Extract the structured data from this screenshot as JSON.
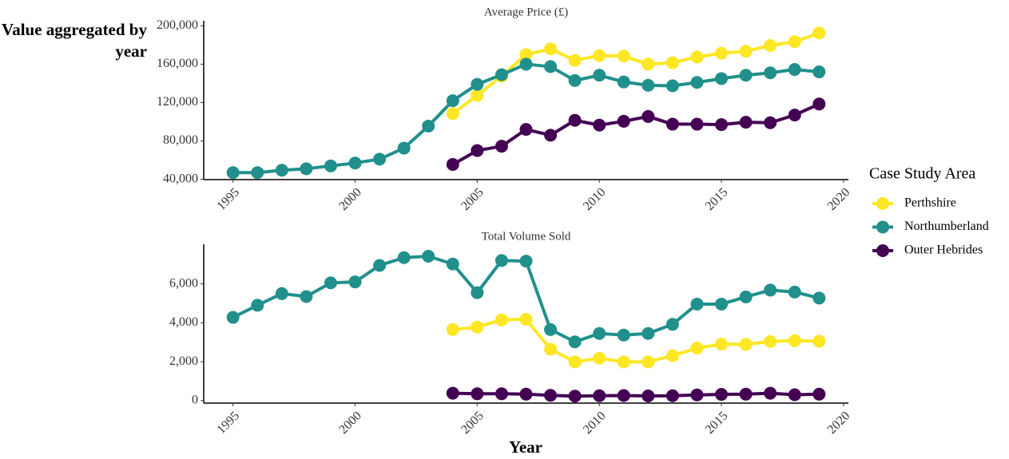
{
  "y_label": "Value aggregated by year",
  "x_label": "Year",
  "legend": {
    "title": "Case Study Area",
    "position": "right"
  },
  "chart_data": [
    {
      "type": "line",
      "title": "Average Price (£)",
      "x": [
        1995,
        1996,
        1997,
        1998,
        1999,
        2000,
        2001,
        2002,
        2003,
        2004,
        2005,
        2006,
        2007,
        2008,
        2009,
        2010,
        2011,
        2012,
        2013,
        2014,
        2015,
        2016,
        2017,
        2018,
        2019
      ],
      "xlim": [
        1993.8,
        2020.2
      ],
      "xticks": [
        1995,
        2000,
        2005,
        2010,
        2015,
        2020
      ],
      "ylim": [
        39700,
        200300
      ],
      "yticks": [
        {
          "value": 40000,
          "label": "40,000"
        },
        {
          "value": 80000,
          "label": "80,000"
        },
        {
          "value": 120000,
          "label": "120,000"
        },
        {
          "value": 160000,
          "label": "160,000"
        },
        {
          "value": 200000,
          "label": "200,000"
        }
      ],
      "series": [
        {
          "name": "Perthshire",
          "color": "#fde725",
          "values": [
            null,
            null,
            null,
            null,
            null,
            null,
            null,
            null,
            null,
            108500,
            127500,
            147500,
            170000,
            176000,
            164000,
            169000,
            168500,
            160000,
            161500,
            167500,
            171500,
            173500,
            179500,
            183500,
            192500
          ]
        },
        {
          "name": "Northumberland",
          "color": "#21908c",
          "values": [
            47000,
            47000,
            49500,
            51000,
            54000,
            57000,
            61000,
            72500,
            95500,
            122000,
            139000,
            149000,
            160000,
            157500,
            143000,
            148500,
            141500,
            138000,
            137500,
            141000,
            145000,
            148500,
            151000,
            154500,
            152000
          ]
        },
        {
          "name": "Outer Hebrides",
          "color": "#440154",
          "values": [
            null,
            null,
            null,
            null,
            null,
            null,
            null,
            null,
            null,
            55500,
            70000,
            74500,
            92000,
            86000,
            101500,
            96500,
            100500,
            105500,
            97500,
            97500,
            97000,
            99500,
            99000,
            107000,
            118500
          ]
        }
      ]
    },
    {
      "type": "line",
      "title": "Total Volume Sold",
      "x": [
        1995,
        1996,
        1997,
        1998,
        1999,
        2000,
        2001,
        2002,
        2003,
        2004,
        2005,
        2006,
        2007,
        2008,
        2009,
        2010,
        2011,
        2012,
        2013,
        2014,
        2015,
        2016,
        2017,
        2018,
        2019
      ],
      "xlim": [
        1993.8,
        2020.2
      ],
      "xticks": [
        1995,
        2000,
        2005,
        2010,
        2015,
        2020
      ],
      "ylim": [
        -130,
        7790
      ],
      "yticks": [
        0,
        {
          "value": 2000,
          "label": "2,000"
        },
        {
          "value": 4000,
          "label": "4,000"
        },
        {
          "value": 6000,
          "label": "6,000"
        }
      ],
      "series": [
        {
          "color": "#fde725",
          "values": [
            null,
            null,
            null,
            null,
            null,
            null,
            null,
            null,
            null,
            3650,
            3780,
            4150,
            4180,
            2640,
            1990,
            2180,
            1990,
            1990,
            2310,
            2700,
            2900,
            2890,
            3040,
            3080,
            3050
          ]
        },
        {
          "color": "#21908c",
          "values": [
            4280,
            4900,
            5500,
            5350,
            6050,
            6100,
            6950,
            7350,
            7420,
            7020,
            5550,
            7200,
            7170,
            3650,
            3020,
            3450,
            3370,
            3450,
            3920,
            4960,
            4960,
            5330,
            5680,
            5580,
            5270
          ]
        },
        {
          "color": "#440154",
          "values": [
            null,
            null,
            null,
            null,
            null,
            null,
            null,
            null,
            null,
            380,
            350,
            350,
            330,
            270,
            230,
            250,
            260,
            240,
            250,
            290,
            320,
            330,
            380,
            300,
            330
          ]
        }
      ]
    }
  ]
}
